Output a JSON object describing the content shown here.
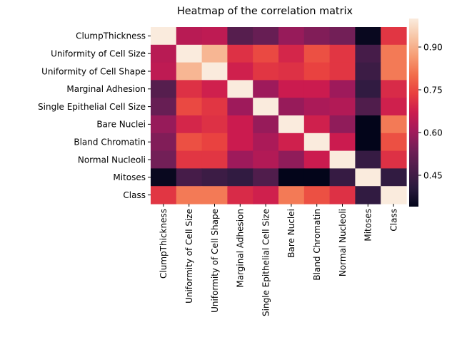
{
  "chart_data": {
    "type": "heatmap",
    "title": "Heatmap of the correlation matrix",
    "xlabel": "",
    "ylabel": "",
    "rows": [
      "ClumpThickness",
      "Uniformity of Cell Size",
      "Uniformity of Cell Shape",
      "Marginal Adhesion",
      "Single Epithelial Cell Size",
      "Bare Nuclei",
      "Bland Chromatin",
      "Normal Nucleoli",
      "Mitoses",
      "Class"
    ],
    "columns": [
      "ClumpThickness",
      "Uniformity of Cell Size",
      "Uniformity of Cell Shape",
      "Marginal Adhesion",
      "Single Epithelial Cell Size",
      "Bare Nuclei",
      "Bland Chromatin",
      "Normal Nucleoli",
      "Mitoses",
      "Class"
    ],
    "values": [
      [
        1.0,
        0.64,
        0.65,
        0.49,
        0.52,
        0.59,
        0.56,
        0.54,
        0.35,
        0.72
      ],
      [
        0.64,
        1.0,
        0.91,
        0.71,
        0.75,
        0.69,
        0.76,
        0.72,
        0.46,
        0.82
      ],
      [
        0.65,
        0.91,
        1.0,
        0.68,
        0.72,
        0.71,
        0.74,
        0.72,
        0.44,
        0.82
      ],
      [
        0.49,
        0.71,
        0.68,
        1.0,
        0.6,
        0.67,
        0.67,
        0.6,
        0.42,
        0.7
      ],
      [
        0.52,
        0.75,
        0.72,
        0.6,
        1.0,
        0.59,
        0.62,
        0.63,
        0.48,
        0.68
      ],
      [
        0.59,
        0.69,
        0.71,
        0.67,
        0.59,
        1.0,
        0.68,
        0.58,
        0.34,
        0.82
      ],
      [
        0.56,
        0.76,
        0.74,
        0.67,
        0.62,
        0.68,
        1.0,
        0.67,
        0.34,
        0.76
      ],
      [
        0.54,
        0.72,
        0.72,
        0.6,
        0.63,
        0.58,
        0.67,
        1.0,
        0.43,
        0.71
      ],
      [
        0.35,
        0.46,
        0.44,
        0.42,
        0.48,
        0.34,
        0.34,
        0.43,
        1.0,
        0.42
      ],
      [
        0.72,
        0.82,
        0.82,
        0.7,
        0.68,
        0.82,
        0.76,
        0.71,
        0.42,
        1.0
      ]
    ],
    "colorbar": {
      "min": 0.34,
      "max": 1.0,
      "ticks": [
        0.45,
        0.6,
        0.75,
        0.9
      ],
      "tick_labels": [
        "0.45",
        "0.60",
        "0.75",
        "0.90"
      ],
      "colormap": "rocket",
      "color_stops": [
        "#03051a",
        "#2a1a3e",
        "#4c1d4b",
        "#711f57",
        "#a11a5b",
        "#cb1b4f",
        "#e83f3f",
        "#f26d4b",
        "#f69c73",
        "#f7c5a5",
        "#faebdd"
      ]
    },
    "grid": false,
    "legend": "none"
  }
}
